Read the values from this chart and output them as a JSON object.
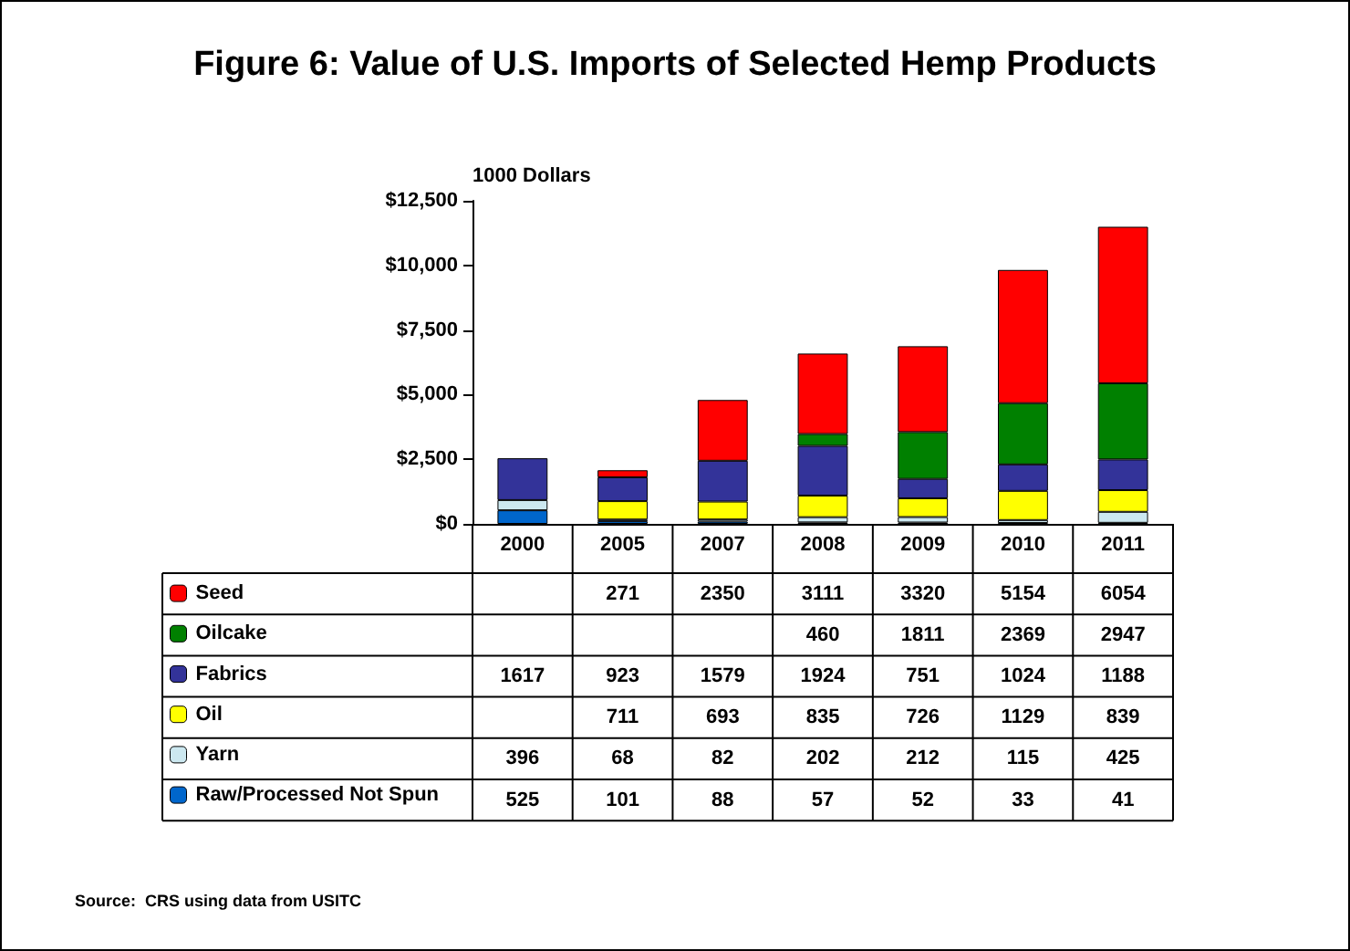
{
  "chart_data": {
    "type": "bar",
    "title": "Figure 6: Value of U.S. Imports of Selected Hemp Products",
    "ylabel": "1000 Dollars",
    "categories": [
      "2000",
      "2005",
      "2007",
      "2008",
      "2009",
      "2010",
      "2011"
    ],
    "stacked": true,
    "data_labels": true,
    "grid": false,
    "legend": "bottom left",
    "ylim": [
      0,
      12500
    ],
    "yticks": [
      {
        "value": 0,
        "label": "$0"
      },
      {
        "value": 2500,
        "label": "$2,500"
      },
      {
        "value": 5000,
        "label": "$5,000"
      },
      {
        "value": 7500,
        "label": "$7,500"
      },
      {
        "value": 10000,
        "label": "$10,000"
      },
      {
        "value": 12500,
        "label": "$12,500"
      }
    ],
    "series": [
      {
        "name": "Raw/Processed Not Spun",
        "color": "#0066cc",
        "values": [
          525,
          101,
          88,
          57,
          52,
          33,
          41
        ]
      },
      {
        "name": "Yarn",
        "color": "#cce8f0",
        "values": [
          396,
          68,
          82,
          202,
          212,
          115,
          425
        ]
      },
      {
        "name": "Oil",
        "color": "#ffff00",
        "values": [
          null,
          711,
          693,
          835,
          726,
          1129,
          839
        ]
      },
      {
        "name": "Fabrics",
        "color": "#333399",
        "values": [
          1617,
          923,
          1579,
          1924,
          751,
          1024,
          1188
        ]
      },
      {
        "name": "Oilcake",
        "color": "#008000",
        "values": [
          null,
          null,
          null,
          460,
          1811,
          2369,
          2947
        ]
      },
      {
        "name": "Seed",
        "color": "#ff0000",
        "values": [
          null,
          271,
          2350,
          3111,
          3320,
          5154,
          6054
        ]
      }
    ],
    "annotations": [
      "Source:  CRS using data from USITC"
    ]
  }
}
